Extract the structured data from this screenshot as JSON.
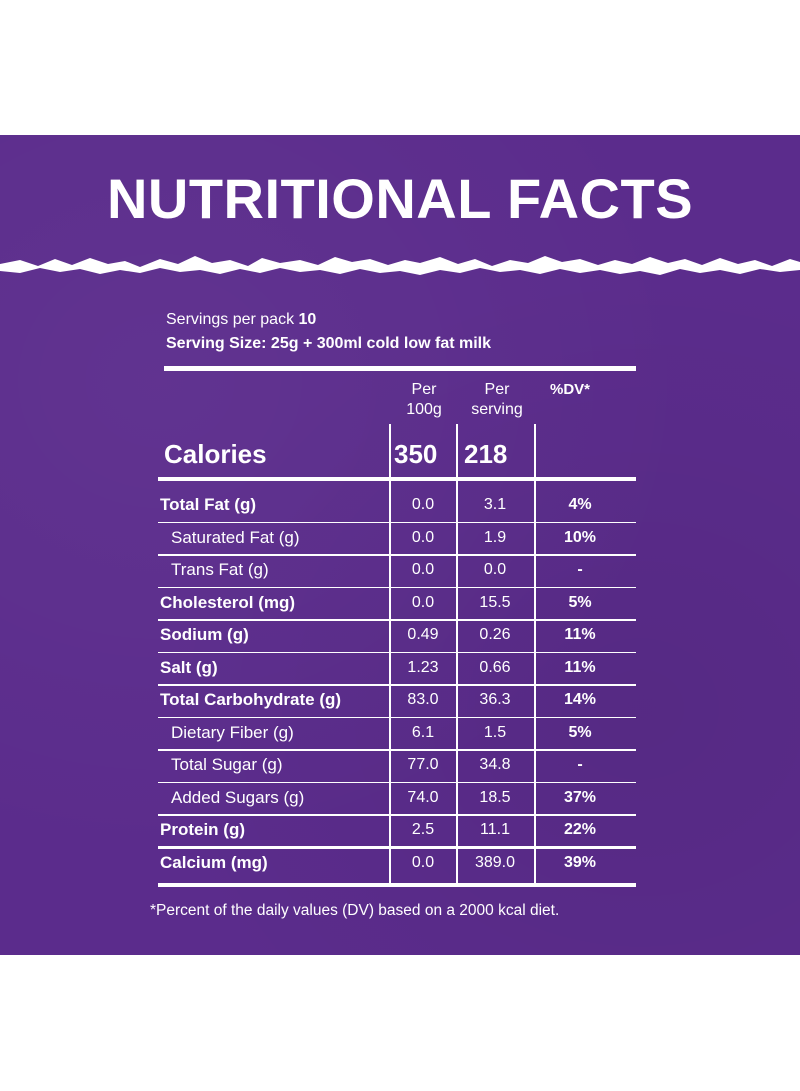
{
  "title": "NUTRITIONAL FACTS",
  "servings": {
    "label": "Servings per pack",
    "count": "10",
    "serving_size": "Serving Size: 25g + 300ml cold low fat milk"
  },
  "headers": {
    "per100g_line1": "Per",
    "per100g_line2": "100g",
    "perserving_line1": "Per",
    "perserving_line2": "serving",
    "dv": "%DV*"
  },
  "calories": {
    "label": "Calories",
    "per100g": "350",
    "perserving": "218"
  },
  "rows": [
    {
      "label": "Total Fat (g)",
      "per100g": "0.0",
      "perserving": "3.1",
      "dv": "4%"
    },
    {
      "label": "Saturated Fat (g)",
      "per100g": "0.0",
      "perserving": "1.9",
      "dv": "10%"
    },
    {
      "label": "Trans Fat (g)",
      "per100g": "0.0",
      "perserving": "0.0",
      "dv": "-"
    },
    {
      "label": "Cholesterol (mg)",
      "per100g": "0.0",
      "perserving": "15.5",
      "dv": "5%"
    },
    {
      "label": "Sodium (g)",
      "per100g": "0.49",
      "perserving": "0.26",
      "dv": "11%"
    },
    {
      "label": "Salt (g)",
      "per100g": "1.23",
      "perserving": "0.66",
      "dv": "11%"
    },
    {
      "label": "Total Carbohydrate (g)",
      "per100g": "83.0",
      "perserving": "36.3",
      "dv": "14%"
    },
    {
      "label": "Dietary Fiber (g)",
      "per100g": "6.1",
      "perserving": "1.5",
      "dv": "5%"
    },
    {
      "label": "Total Sugar (g)",
      "per100g": "77.0",
      "perserving": "34.8",
      "dv": "-"
    },
    {
      "label": "Added Sugars (g)",
      "per100g": "74.0",
      "perserving": "18.5",
      "dv": "37%"
    },
    {
      "label": "Protein (g)",
      "per100g": "2.5",
      "perserving": "11.1",
      "dv": "22%"
    },
    {
      "label": "Calcium (mg)",
      "per100g": "0.0",
      "perserving": "389.0",
      "dv": "39%"
    }
  ],
  "footnote": "*Percent of the daily values (DV) based on a 2000 kcal diet.",
  "colors": {
    "panel": "#5b2c8c",
    "text": "#ffffff"
  }
}
